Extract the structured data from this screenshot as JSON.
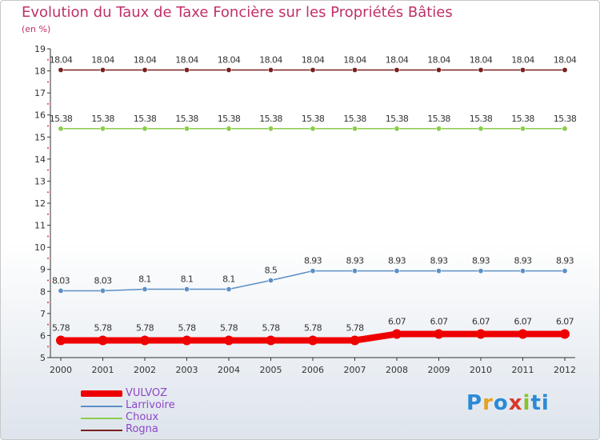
{
  "chart_data": {
    "type": "line",
    "title": "Evolution du Taux de Taxe Foncière sur les Propriétés Bâties",
    "subtitle": "(en %)",
    "xlabel": "",
    "ylabel": "",
    "x": [
      "2000",
      "2001",
      "2002",
      "2003",
      "2004",
      "2005",
      "2006",
      "2007",
      "2008",
      "2009",
      "2010",
      "2011",
      "2012"
    ],
    "ylim": [
      5,
      19
    ],
    "yticks": [
      "5",
      "6",
      "7",
      "8",
      "9",
      "10",
      "11",
      "12",
      "13",
      "14",
      "15",
      "16",
      "17",
      "18",
      "19"
    ],
    "series": [
      {
        "name": "VULVOZ",
        "color": "#ee0000",
        "width": 8,
        "values": [
          5.78,
          5.78,
          5.78,
          5.78,
          5.78,
          5.78,
          5.78,
          5.78,
          6.07,
          6.07,
          6.07,
          6.07,
          6.07
        ],
        "labels": [
          "5.78",
          "5.78",
          "5.78",
          "5.78",
          "5.78",
          "5.78",
          "5.78",
          "5.78",
          "6.07",
          "6.07",
          "6.07",
          "6.07",
          "6.07"
        ]
      },
      {
        "name": "Larrivoire",
        "color": "#5d8fc6",
        "width": 1.5,
        "values": [
          8.03,
          8.03,
          8.1,
          8.1,
          8.1,
          8.5,
          8.93,
          8.93,
          8.93,
          8.93,
          8.93,
          8.93,
          8.93
        ],
        "labels": [
          "8.03",
          "8.03",
          "8.1",
          "8.1",
          "8.1",
          "8.5",
          "8.93",
          "8.93",
          "8.93",
          "8.93",
          "8.93",
          "8.93",
          "8.93"
        ]
      },
      {
        "name": "Choux",
        "color": "#8ccc4c",
        "width": 1.5,
        "values": [
          15.38,
          15.38,
          15.38,
          15.38,
          15.38,
          15.38,
          15.38,
          15.38,
          15.38,
          15.38,
          15.38,
          15.38,
          15.38
        ],
        "labels": [
          "15.38",
          "15.38",
          "15.38",
          "15.38",
          "15.38",
          "15.38",
          "15.38",
          "15.38",
          "15.38",
          "15.38",
          "15.38",
          "15.38",
          "15.38"
        ]
      },
      {
        "name": "Rogna",
        "color": "#7a2020",
        "width": 1.5,
        "values": [
          18.04,
          18.04,
          18.04,
          18.04,
          18.04,
          18.04,
          18.04,
          18.04,
          18.04,
          18.04,
          18.04,
          18.04,
          18.04
        ],
        "labels": [
          "18.04",
          "18.04",
          "18.04",
          "18.04",
          "18.04",
          "18.04",
          "18.04",
          "18.04",
          "18.04",
          "18.04",
          "18.04",
          "18.04",
          "18.04"
        ]
      }
    ],
    "grid": false,
    "legend": "bottom-left"
  },
  "logo": {
    "letters": [
      "P",
      "r",
      "o",
      "x",
      "i",
      "ti"
    ]
  },
  "colors": {
    "title": "#c0306a",
    "legend_text": "#8c46c8",
    "axis": "#333333"
  }
}
